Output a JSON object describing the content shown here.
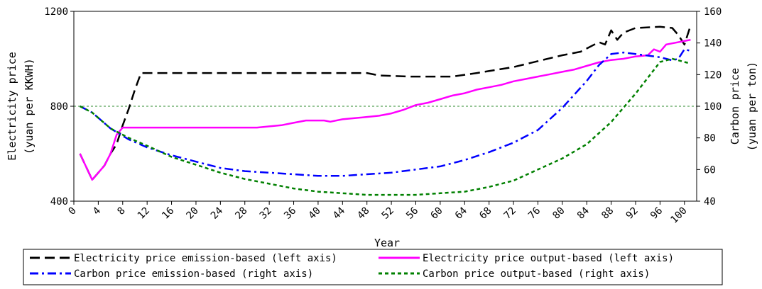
{
  "chart_data": {
    "type": "line",
    "xlabel": "Year",
    "ylabel_left": "Electricity price\n(yuan per KKWH)",
    "ylabel_right": "Carbon price\n(yuan per ton)",
    "xlim": [
      0,
      102
    ],
    "ylim_left": [
      400,
      1200
    ],
    "ylim_right": [
      40,
      160
    ],
    "x_ticks": [
      0,
      4,
      8,
      12,
      16,
      20,
      24,
      28,
      32,
      36,
      40,
      44,
      48,
      52,
      56,
      60,
      64,
      68,
      72,
      76,
      80,
      84,
      88,
      92,
      96,
      100
    ],
    "y_ticks_left": [
      400,
      800,
      1200
    ],
    "y_ticks_right": [
      40,
      60,
      80,
      100,
      120,
      140,
      160
    ],
    "gridlines_left": [
      800,
      1200
    ],
    "grid_color": "#2e8b2e",
    "legend_position": "bottom",
    "series": [
      {
        "name": "Electricity price emission-based (left axis)",
        "axis": "left",
        "color": "#000000",
        "dash": "long-dash",
        "points": [
          [
            1,
            600
          ],
          [
            3,
            490
          ],
          [
            5,
            550
          ],
          [
            6,
            600
          ],
          [
            7,
            640
          ],
          [
            8,
            720
          ],
          [
            9,
            790
          ],
          [
            10,
            870
          ],
          [
            11,
            940
          ],
          [
            20,
            940
          ],
          [
            30,
            940
          ],
          [
            38,
            940
          ],
          [
            48,
            940
          ],
          [
            50,
            930
          ],
          [
            55,
            925
          ],
          [
            62,
            925
          ],
          [
            66,
            940
          ],
          [
            72,
            965
          ],
          [
            76,
            990
          ],
          [
            80,
            1015
          ],
          [
            83,
            1030
          ],
          [
            86,
            1070
          ],
          [
            87,
            1060
          ],
          [
            88,
            1120
          ],
          [
            89,
            1080
          ],
          [
            90,
            1110
          ],
          [
            92,
            1130
          ],
          [
            96,
            1135
          ],
          [
            98,
            1130
          ],
          [
            99,
            1100
          ],
          [
            100,
            1060
          ],
          [
            101,
            1140
          ]
        ]
      },
      {
        "name": "Electricity price output-based (left axis)",
        "axis": "left",
        "color": "#ff00ff",
        "dash": "solid",
        "points": [
          [
            1,
            600
          ],
          [
            3,
            490
          ],
          [
            5,
            550
          ],
          [
            6,
            600
          ],
          [
            7,
            680
          ],
          [
            8,
            710
          ],
          [
            10,
            710
          ],
          [
            20,
            710
          ],
          [
            30,
            710
          ],
          [
            34,
            720
          ],
          [
            36,
            730
          ],
          [
            38,
            740
          ],
          [
            41,
            740
          ],
          [
            42,
            735
          ],
          [
            44,
            745
          ],
          [
            46,
            750
          ],
          [
            48,
            755
          ],
          [
            50,
            760
          ],
          [
            52,
            770
          ],
          [
            54,
            785
          ],
          [
            56,
            805
          ],
          [
            58,
            815
          ],
          [
            60,
            830
          ],
          [
            62,
            845
          ],
          [
            64,
            855
          ],
          [
            66,
            870
          ],
          [
            68,
            880
          ],
          [
            70,
            890
          ],
          [
            72,
            905
          ],
          [
            74,
            915
          ],
          [
            76,
            925
          ],
          [
            78,
            935
          ],
          [
            80,
            945
          ],
          [
            82,
            955
          ],
          [
            84,
            970
          ],
          [
            86,
            985
          ],
          [
            88,
            995
          ],
          [
            90,
            1000
          ],
          [
            92,
            1010
          ],
          [
            94,
            1015
          ],
          [
            95,
            1040
          ],
          [
            96,
            1030
          ],
          [
            97,
            1060
          ],
          [
            98,
            1065
          ],
          [
            100,
            1075
          ],
          [
            101,
            1080
          ]
        ]
      },
      {
        "name": "Carbon price emission-based (right axis)",
        "axis": "right",
        "color": "#0000ff",
        "dash": "dash-dot",
        "points": [
          [
            1,
            100
          ],
          [
            3,
            96
          ],
          [
            6,
            86
          ],
          [
            9,
            79
          ],
          [
            12,
            74
          ],
          [
            16,
            69
          ],
          [
            20,
            65
          ],
          [
            24,
            61
          ],
          [
            28,
            59
          ],
          [
            32,
            58
          ],
          [
            36,
            57
          ],
          [
            40,
            56
          ],
          [
            44,
            56
          ],
          [
            48,
            57
          ],
          [
            52,
            58
          ],
          [
            56,
            60
          ],
          [
            60,
            62
          ],
          [
            64,
            66
          ],
          [
            68,
            71
          ],
          [
            72,
            77
          ],
          [
            76,
            85
          ],
          [
            80,
            99
          ],
          [
            84,
            116
          ],
          [
            86,
            126
          ],
          [
            88,
            133
          ],
          [
            90,
            134
          ],
          [
            92,
            133
          ],
          [
            94,
            132
          ],
          [
            96,
            131
          ],
          [
            98,
            129
          ],
          [
            99,
            130
          ],
          [
            100,
            136
          ],
          [
            101,
            135
          ]
        ]
      },
      {
        "name": "Carbon price output-based (right axis)",
        "axis": "right",
        "color": "#008000",
        "dash": "dotted",
        "points": [
          [
            1,
            100
          ],
          [
            3,
            96
          ],
          [
            6,
            86
          ],
          [
            9,
            80
          ],
          [
            12,
            75
          ],
          [
            16,
            68
          ],
          [
            20,
            63
          ],
          [
            24,
            58
          ],
          [
            28,
            54
          ],
          [
            32,
            51
          ],
          [
            36,
            48
          ],
          [
            40,
            46
          ],
          [
            44,
            45
          ],
          [
            48,
            44
          ],
          [
            52,
            44
          ],
          [
            56,
            44
          ],
          [
            60,
            45
          ],
          [
            64,
            46
          ],
          [
            68,
            49
          ],
          [
            72,
            53
          ],
          [
            76,
            60
          ],
          [
            80,
            67
          ],
          [
            84,
            76
          ],
          [
            88,
            90
          ],
          [
            92,
            108
          ],
          [
            94,
            118
          ],
          [
            96,
            128
          ],
          [
            98,
            130
          ],
          [
            99,
            129
          ],
          [
            100,
            128
          ],
          [
            101,
            127
          ]
        ]
      }
    ]
  }
}
